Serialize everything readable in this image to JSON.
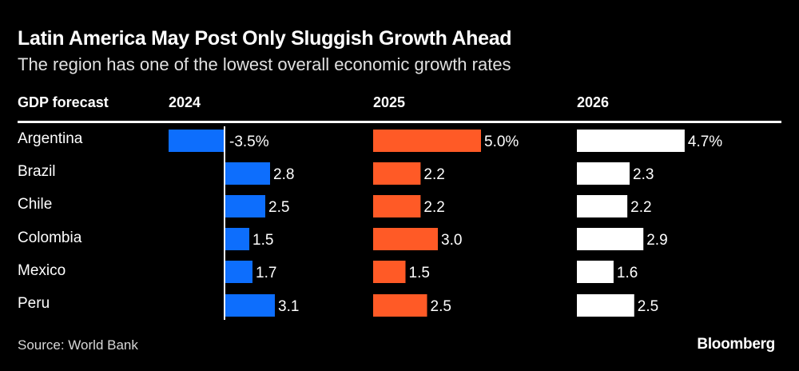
{
  "chart_data": {
    "type": "bar",
    "title": "Latin America May Post Only Sluggish Growth Ahead",
    "subtitle": "The region has one of the lowest overall economic growth rates",
    "row_header": "GDP forecast",
    "categories": [
      "Argentina",
      "Brazil",
      "Chile",
      "Colombia",
      "Mexico",
      "Peru"
    ],
    "series": [
      {
        "name": "2024",
        "color": "#0d6efd",
        "values": [
          -3.5,
          2.8,
          2.5,
          1.5,
          1.7,
          3.1
        ],
        "labels": [
          "-3.5%",
          "2.8",
          "2.5",
          "1.5",
          "1.7",
          "3.1"
        ]
      },
      {
        "name": "2025",
        "color": "#ff5a26",
        "values": [
          5.0,
          2.2,
          2.2,
          3.0,
          1.5,
          2.5
        ],
        "labels": [
          "5.0%",
          "2.2",
          "2.2",
          "3.0",
          "1.5",
          "2.5"
        ]
      },
      {
        "name": "2026",
        "color": "#ffffff",
        "values": [
          4.7,
          2.3,
          2.2,
          2.9,
          1.6,
          2.5
        ],
        "labels": [
          "4.7%",
          "2.3",
          "2.2",
          "2.9",
          "1.6",
          "2.5"
        ]
      }
    ],
    "unit": "%",
    "source": "Source: World Bank",
    "brand": "Bloomberg"
  }
}
